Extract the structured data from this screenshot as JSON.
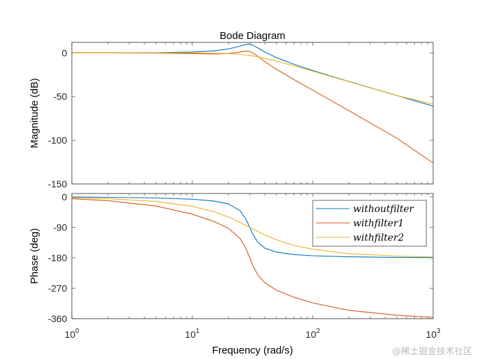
{
  "chart_data": [
    {
      "type": "line",
      "title": "Bode Diagram",
      "xlabel": "Frequency  (rad/s)",
      "ylabel": "Magnitude (dB)",
      "xscale": "log",
      "xlim": [
        1,
        1000
      ],
      "ylim": [
        -150,
        12
      ],
      "yticks": [
        0,
        -50,
        -100,
        -150
      ],
      "ytick_labels": [
        "0",
        "-50",
        "-100",
        "-150"
      ],
      "grid": false,
      "x": [
        1,
        2,
        5,
        10,
        15,
        20,
        25,
        28,
        30,
        32,
        35,
        40,
        50,
        70,
        100,
        200,
        500,
        1000
      ],
      "series": [
        {
          "name": "without filter",
          "color": "#0072BD",
          "values": [
            0,
            0.04,
            0.23,
            0.96,
            2.3,
            4.5,
            7.8,
            9.76,
            9.9,
            8.68,
            5.7,
            1.04,
            -5.4,
            -13.1,
            -20.1,
            -32.8,
            -48.8,
            -60.9
          ]
        },
        {
          "name": "with filter1",
          "color": "#D95319",
          "values": [
            0,
            -0.05,
            -0.31,
            -0.92,
            -1.2,
            -0.7,
            1.0,
            2.05,
            1.6,
            -0.19,
            -4.0,
            -10.0,
            -18.8,
            -30.6,
            -42.6,
            -66.2,
            -97.7,
            -126.0
          ]
        },
        {
          "name": "with filter2",
          "color": "#EDB120",
          "values": [
            0,
            0,
            0,
            -0.05,
            -0.26,
            -0.78,
            -1.71,
            -2.45,
            -3.0,
            -3.6,
            -4.55,
            -6.2,
            -9.4,
            -14.9,
            -20.9,
            -33.0,
            -48.9,
            -58.5
          ]
        }
      ]
    },
    {
      "type": "line",
      "xlabel": "Frequency  (rad/s)",
      "ylabel": "Phase (deg)",
      "xscale": "log",
      "xlim": [
        1,
        1000
      ],
      "ylim": [
        -360,
        10
      ],
      "xticks": [
        1,
        10,
        100,
        1000
      ],
      "xtick_labels": [
        {
          "base": "10",
          "exp": "0"
        },
        {
          "base": "10",
          "exp": "1"
        },
        {
          "base": "10",
          "exp": "2"
        },
        {
          "base": "10",
          "exp": "3"
        }
      ],
      "yticks": [
        0,
        -90,
        -180,
        -270,
        -360
      ],
      "ytick_labels": [
        "0",
        "-90",
        "-180",
        "-270",
        "-360"
      ],
      "grid": false,
      "legend_position": "top-right",
      "x": [
        1,
        2,
        5,
        10,
        15,
        20,
        25,
        28,
        30,
        32,
        35,
        40,
        50,
        70,
        100,
        200,
        500,
        1000
      ],
      "series": [
        {
          "name": "without filter",
          "color": "#0072BD",
          "values": [
            -0.3,
            -1.2,
            -3.1,
            -6.8,
            -12.0,
            -21.0,
            -41.1,
            -66.6,
            -90,
            -112,
            -134.1,
            -151.3,
            -163.3,
            -170.5,
            -174.0,
            -177.2,
            -178.9,
            -179.4
          ]
        },
        {
          "name": "with filter1",
          "color": "#D95319",
          "values": [
            -5.3,
            -11.1,
            -27.1,
            -51.1,
            -72.0,
            -93.2,
            -123.1,
            -153.6,
            -180,
            -204.8,
            -230.9,
            -253.9,
            -275.6,
            -296.7,
            -313.4,
            -335.4,
            -350.0,
            -356.0
          ]
        },
        {
          "name": "with filter2",
          "color": "#EDB120",
          "values": [
            -2.7,
            -5.4,
            -13.6,
            -27.9,
            -43.3,
            -59.5,
            -75.4,
            -84.4,
            -90,
            -95.2,
            -102.3,
            -112.4,
            -127,
            -143.4,
            -155,
            -167.7,
            -175.1,
            -177.6
          ]
        }
      ]
    }
  ],
  "legend": {
    "items": [
      "without filter",
      "with filter1",
      "with filter2"
    ],
    "display": [
      "withoutfilter",
      "withfilter1",
      "withfilter2"
    ]
  },
  "watermark": "@稀土掘金技术社区"
}
